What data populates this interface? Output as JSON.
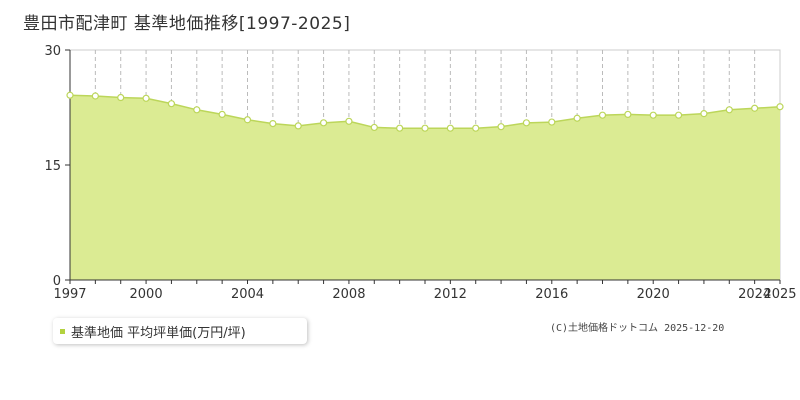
{
  "title": "豊田市配津町 基準地価推移[1997-2025]",
  "legend": {
    "label": "基準地価 平均坪単価(万円/坪)"
  },
  "credit": "(C)土地価格ドットコム 2025-12-20",
  "colors": {
    "fill": "#dbeb93",
    "line": "#bcd65a",
    "marker_fill": "#ffffff",
    "legend_marker": "#b3d23f"
  },
  "chart_data": {
    "type": "area",
    "title": "豊田市配津町 基準地価推移[1997-2025]",
    "xlabel": "",
    "ylabel": "",
    "xlim": [
      1997,
      2025
    ],
    "ylim": [
      0,
      30
    ],
    "yticks": [
      0,
      15,
      30
    ],
    "xticks": [
      1997,
      2000,
      2004,
      2008,
      2012,
      2016,
      2020,
      2024,
      2025
    ],
    "grid": true,
    "legend_position": "bottom-left",
    "series": [
      {
        "name": "基準地価 平均坪単価(万円/坪)",
        "x": [
          1997,
          1998,
          1999,
          2000,
          2001,
          2002,
          2003,
          2004,
          2005,
          2006,
          2007,
          2008,
          2009,
          2010,
          2011,
          2012,
          2013,
          2014,
          2015,
          2016,
          2017,
          2018,
          2019,
          2020,
          2021,
          2022,
          2023,
          2024,
          2025
        ],
        "values": [
          24.1,
          24.0,
          23.8,
          23.7,
          23.0,
          22.2,
          21.6,
          20.9,
          20.4,
          20.1,
          20.5,
          20.7,
          19.9,
          19.8,
          19.8,
          19.8,
          19.8,
          20.0,
          20.5,
          20.6,
          21.1,
          21.5,
          21.6,
          21.5,
          21.5,
          21.7,
          22.2,
          22.4,
          22.6
        ]
      }
    ]
  }
}
